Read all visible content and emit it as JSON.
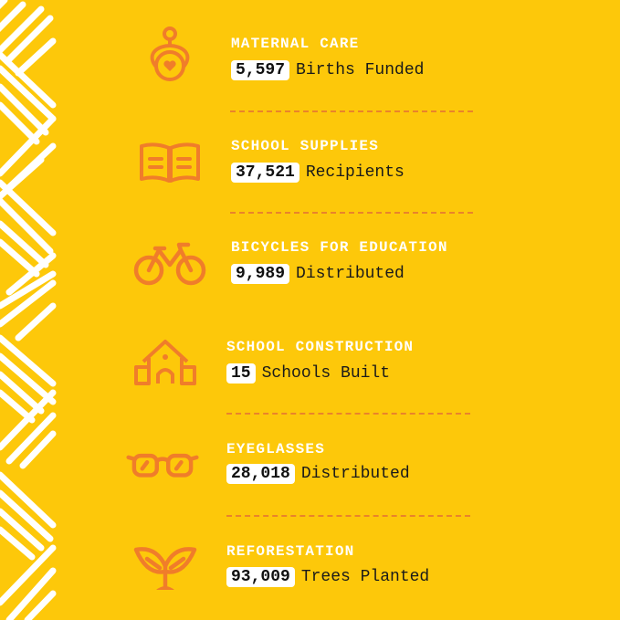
{
  "colors": {
    "background": "#FDC80A",
    "accent": "#F07D2A",
    "title": "#FFFFFF"
  },
  "items": [
    {
      "icon": "mother-baby-heart-icon",
      "title": "MATERNAL CARE",
      "value": "5,597",
      "label": "Births Funded"
    },
    {
      "icon": "open-book-icon",
      "title": "SCHOOL SUPPLIES",
      "value": "37,521",
      "label": "Recipients"
    },
    {
      "icon": "bicycle-icon",
      "title": "BICYCLES FOR EDUCATION",
      "value": "9,989",
      "label": "Distributed"
    },
    {
      "icon": "school-building-icon",
      "title": "SCHOOL CONSTRUCTION",
      "value": "15",
      "label": "Schools Built"
    },
    {
      "icon": "eyeglasses-icon",
      "title": "EYEGLASSES",
      "value": "28,018",
      "label": "Distributed"
    },
    {
      "icon": "sprout-icon",
      "title": "REFORESTATION",
      "value": "93,009",
      "label": "Trees Planted"
    }
  ]
}
